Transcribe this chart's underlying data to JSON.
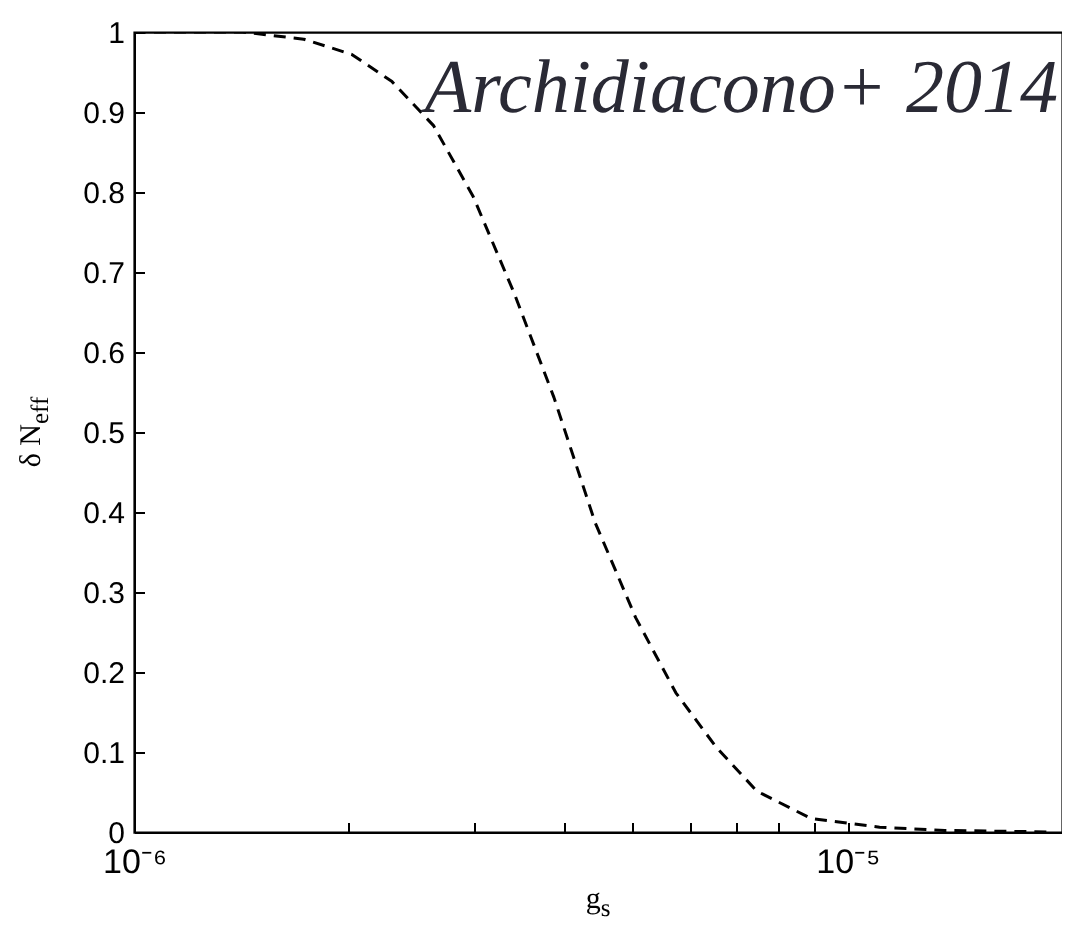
{
  "chart_data": {
    "type": "line",
    "xlabel": "g$_{s}$",
    "ylabel": "δ N$_{eff}$",
    "annotations": [
      "Archidiacono+ 2014"
    ],
    "log": "x",
    "grid": false,
    "line_style": "dashed",
    "marker": "none",
    "x": [
      1e-06,
      1.42e-06,
      1.73e-06,
      2.02e-06,
      2.3e-06,
      2.63e-06,
      2.99e-06,
      3.41e-06,
      3.88e-06,
      4.43e-06,
      5.05e-06,
      5.75e-06,
      6.55e-06,
      7.47e-06,
      8.89e-06,
      1.11e-05,
      1.37e-05,
      1.95e-05
    ],
    "series": [
      {
        "color": "#000000",
        "values": [
          1.0,
          1.0,
          0.991,
          0.972,
          0.938,
          0.883,
          0.794,
          0.674,
          0.543,
          0.387,
          0.268,
          0.174,
          0.106,
          0.051,
          0.017,
          0.006,
          0.002,
          0.0
        ]
      }
    ],
    "xlim": [
      1e-06,
      2e-05
    ],
    "ylim": [
      0,
      1
    ],
    "xticks": [
      {
        "value": 1e-06,
        "label": "10⁻⁶"
      },
      {
        "value": 2e-06,
        "label": null
      },
      {
        "value": 3e-06,
        "label": null
      },
      {
        "value": 4e-06,
        "label": null
      },
      {
        "value": 5e-06,
        "label": null
      },
      {
        "value": 6e-06,
        "label": null
      },
      {
        "value": 7e-06,
        "label": null
      },
      {
        "value": 8e-06,
        "label": null
      },
      {
        "value": 9e-06,
        "label": null
      },
      {
        "value": 1e-05,
        "label": "10⁻⁵"
      },
      {
        "value": 2e-05,
        "label": null
      }
    ],
    "yticks": [
      0,
      0.1,
      0.2,
      0.3,
      0.4,
      0.5,
      0.6,
      0.7,
      0.8,
      0.9,
      1
    ]
  }
}
